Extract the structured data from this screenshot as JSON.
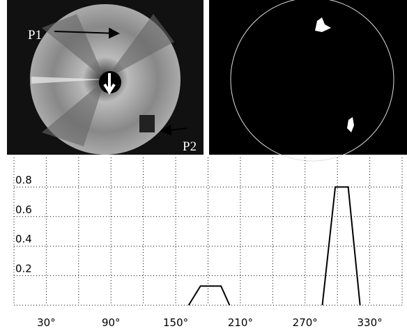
{
  "chart_data": {
    "type": "line",
    "annotations": [
      "P1",
      "P2"
    ],
    "x": [
      162,
      173,
      192,
      200,
      243,
      286,
      298,
      310,
      321
    ],
    "series": [
      {
        "color": "#000000",
        "values": [
          0,
          0.13,
          0.13,
          0,
          null,
          0,
          0.8,
          0.8,
          0
        ]
      }
    ],
    "xlim": [
      0,
      360
    ],
    "xticks": [
      {
        "value": 30,
        "label": "30°"
      },
      {
        "value": 90,
        "label": "90°"
      },
      {
        "value": 150,
        "label": "150°"
      },
      {
        "value": 210,
        "label": "210°"
      },
      {
        "value": 270,
        "label": "270°"
      },
      {
        "value": 330,
        "label": "330°"
      }
    ],
    "xminorticks": [
      0,
      60,
      120,
      180,
      240,
      300,
      360
    ],
    "ylim": [
      0,
      1
    ],
    "yticks": [
      0.2,
      0.4,
      0.6,
      0.8
    ],
    "grid": true
  }
}
